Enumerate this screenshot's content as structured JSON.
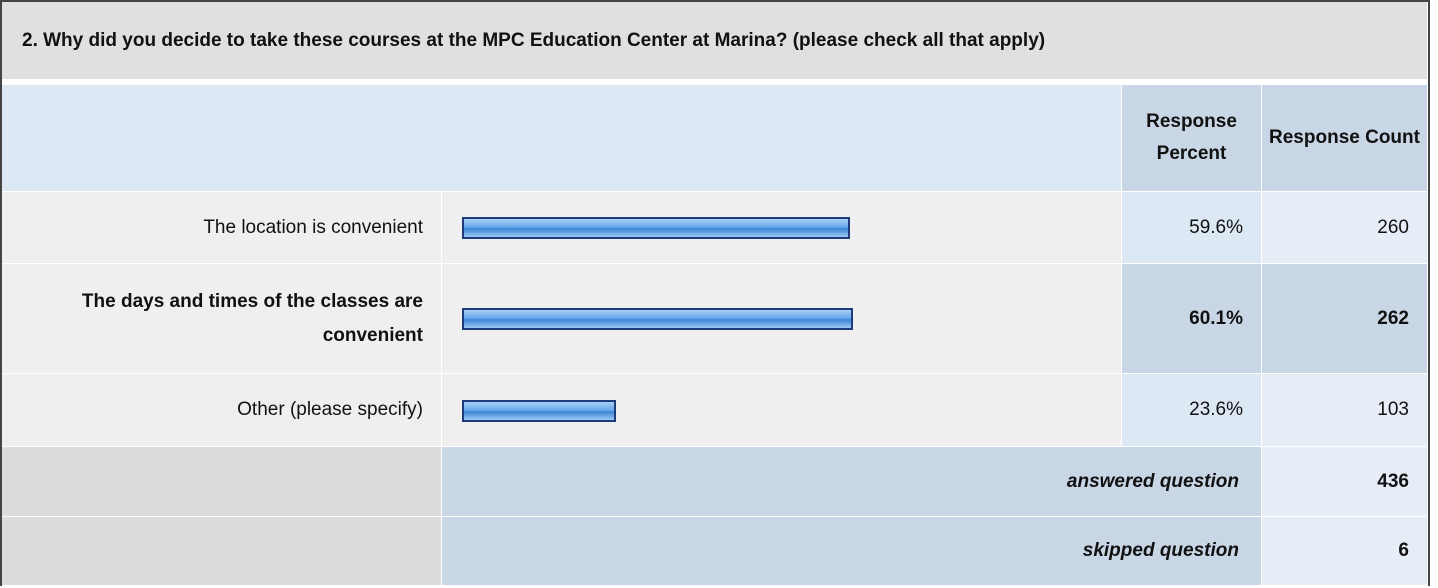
{
  "title": "2. Why did you decide to take these courses at the MPC Education Center at Marina? (please check all that apply)",
  "table": {
    "headers": [
      "Response Percent",
      "Response Count"
    ],
    "highlighted_row": 1,
    "rows": [
      {
        "label": "The location is convenient",
        "percent": 59.6,
        "percent_label": "59.6%",
        "count": 260
      },
      {
        "label": "The days and times of the classes are convenient",
        "percent": 60.1,
        "percent_label": "60.1%",
        "count": 262
      },
      {
        "label": "Other (please specify)",
        "percent": 23.6,
        "percent_label": "23.6%",
        "count": 103
      }
    ],
    "summary": [
      {
        "label": "answered question",
        "count": 436
      },
      {
        "label": "skipped question",
        "count": 6
      }
    ]
  }
}
